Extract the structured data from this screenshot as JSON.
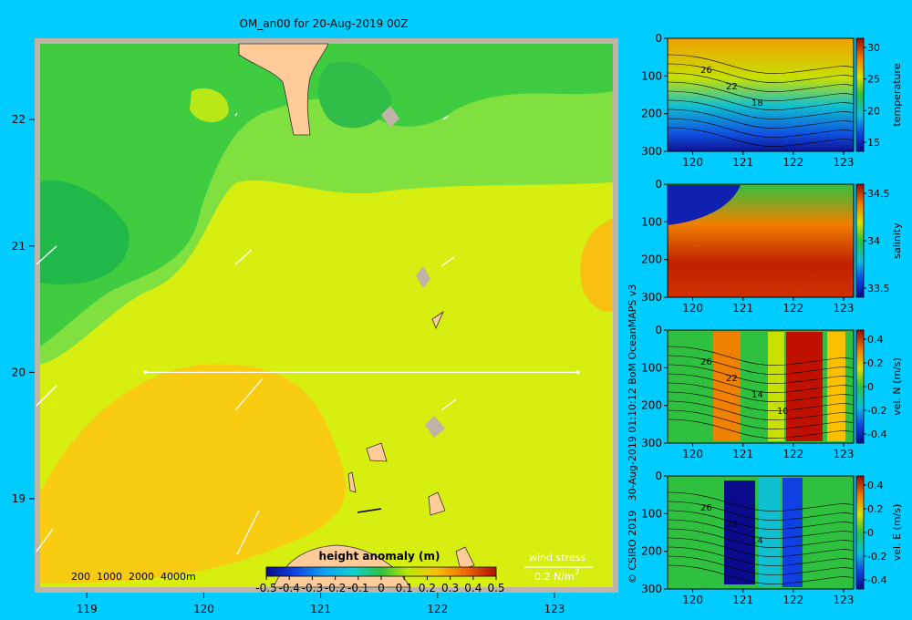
{
  "title": "OM_an00 for 20-Aug-2019 00Z",
  "credit": "© CSIRO 2019   30-Aug-2019 01:10:12 BoM OceanMAPS v3",
  "colors": {
    "background": "#00ccff",
    "land": "#ffcc99",
    "shelf": "#c0b4a8",
    "arrow": "#ffffff"
  },
  "map": {
    "x_ticks": [
      "119",
      "120",
      "121",
      "122",
      "123"
    ],
    "y_ticks": [
      "22",
      "21",
      "20",
      "19"
    ],
    "xlim": [
      118.6,
      123.5
    ],
    "ylim": [
      18.3,
      22.6
    ],
    "depth_legend": "200  1000  2000  4000m",
    "wind_label": "wind stress",
    "wind_scale": "0.2 N/m",
    "wind_exp": "2",
    "section_line": {
      "lat": 20.0,
      "lon_start": 119.5,
      "lon_end": 123.2
    },
    "colorbar": {
      "label": "height anomaly (m)",
      "ticks": [
        "-0.5",
        "-0.4",
        "-0.3",
        "-0.2",
        "-0.1",
        "0",
        "0.1",
        "0.2",
        "0.3",
        "0.4",
        "0.5"
      ]
    }
  },
  "sections": [
    {
      "label": "temperature",
      "cb_ticks": [
        "30",
        "25",
        "20",
        "15"
      ],
      "contours": [
        "26",
        "22",
        "18"
      ]
    },
    {
      "label": "salinity",
      "cb_ticks": [
        "34.5",
        "34",
        "33.5"
      ],
      "contours": []
    },
    {
      "label": "vel. N  (m/s)",
      "cb_ticks": [
        "0.4",
        "0.2",
        "0",
        "-0.2",
        "-0.4"
      ],
      "contours": [
        "26",
        "22",
        "14",
        "10"
      ]
    },
    {
      "label": "vel. E  (m/s)",
      "cb_ticks": [
        "0.4",
        "0.2",
        "0",
        "-0.2",
        "-0.4"
      ],
      "contours": [
        "26",
        "22",
        "14"
      ]
    }
  ],
  "section_axes": {
    "x_ticks": [
      "120",
      "121",
      "122",
      "123"
    ],
    "y_ticks": [
      "0",
      "100",
      "200",
      "300"
    ]
  },
  "chart_data": [
    {
      "type": "heatmap",
      "title": "OM_an00 for 20-Aug-2019 00Z",
      "quantity": "height anomaly (m)",
      "x_range": [
        118.6,
        123.5
      ],
      "y_range": [
        18.3,
        22.6
      ],
      "value_range": [
        -0.5,
        0.5
      ]
    },
    {
      "type": "heatmap",
      "quantity": "temperature",
      "x_range": [
        119.5,
        123.2
      ],
      "y_range": [
        0,
        300
      ],
      "value_range": [
        15,
        31
      ]
    },
    {
      "type": "heatmap",
      "quantity": "salinity",
      "x_range": [
        119.5,
        123.2
      ],
      "y_range": [
        0,
        300
      ],
      "value_range": [
        33.4,
        34.9
      ]
    },
    {
      "type": "heatmap",
      "quantity": "vel. N (m/s)",
      "x_range": [
        119.5,
        123.2
      ],
      "y_range": [
        0,
        300
      ],
      "value_range": [
        -0.4,
        0.4
      ]
    },
    {
      "type": "heatmap",
      "quantity": "vel. E (m/s)",
      "x_range": [
        119.5,
        123.2
      ],
      "y_range": [
        0,
        300
      ],
      "value_range": [
        -0.4,
        0.4
      ]
    }
  ]
}
